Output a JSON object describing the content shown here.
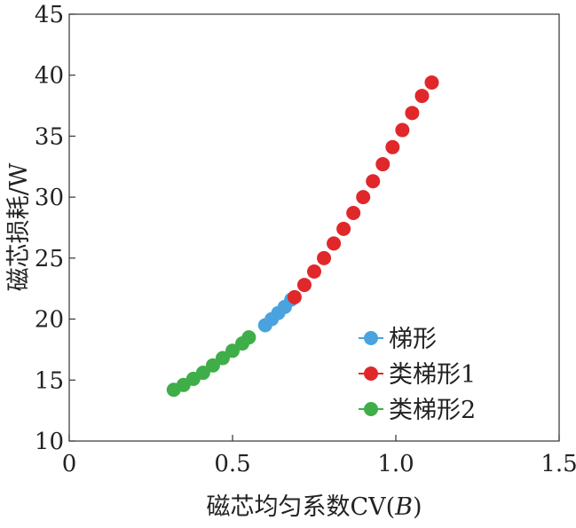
{
  "chart_data": {
    "type": "scatter",
    "xlabel": "磁芯均匀系数CV(B)",
    "xlabel_prefix": "磁芯均匀系数CV(",
    "xlabel_italic": "B",
    "xlabel_suffix": ")",
    "ylabel": "磁芯损耗/W",
    "xlim": [
      0,
      1.5
    ],
    "ylim": [
      10,
      45
    ],
    "xticks": [
      0,
      0.5,
      1.0,
      1.5
    ],
    "xtick_labels": [
      "0",
      "0.5",
      "1.0",
      "1.5"
    ],
    "yticks": [
      10,
      15,
      20,
      25,
      30,
      35,
      40,
      45
    ],
    "ytick_labels": [
      "10",
      "15",
      "20",
      "25",
      "30",
      "35",
      "40",
      "45"
    ],
    "legend_position": "lower-right",
    "series": [
      {
        "name": "梯形",
        "color": "#4aa3df",
        "x": [
          0.6,
          0.62,
          0.64,
          0.66,
          0.68
        ],
        "y": [
          19.5,
          20.0,
          20.5,
          21.0,
          21.6
        ]
      },
      {
        "name": "类梯形1",
        "color": "#e0282b",
        "x": [
          0.69,
          0.72,
          0.75,
          0.78,
          0.81,
          0.84,
          0.87,
          0.9,
          0.93,
          0.96,
          0.99,
          1.02,
          1.05,
          1.08,
          1.11
        ],
        "y": [
          21.8,
          22.8,
          23.9,
          25.0,
          26.2,
          27.4,
          28.7,
          30.0,
          31.3,
          32.7,
          34.1,
          35.5,
          36.9,
          38.3,
          39.4
        ]
      },
      {
        "name": "类梯形2",
        "color": "#3fae49",
        "x": [
          0.32,
          0.35,
          0.38,
          0.41,
          0.44,
          0.47,
          0.5,
          0.53,
          0.55
        ],
        "y": [
          14.2,
          14.6,
          15.1,
          15.6,
          16.2,
          16.8,
          17.4,
          18.0,
          18.5
        ]
      }
    ]
  }
}
